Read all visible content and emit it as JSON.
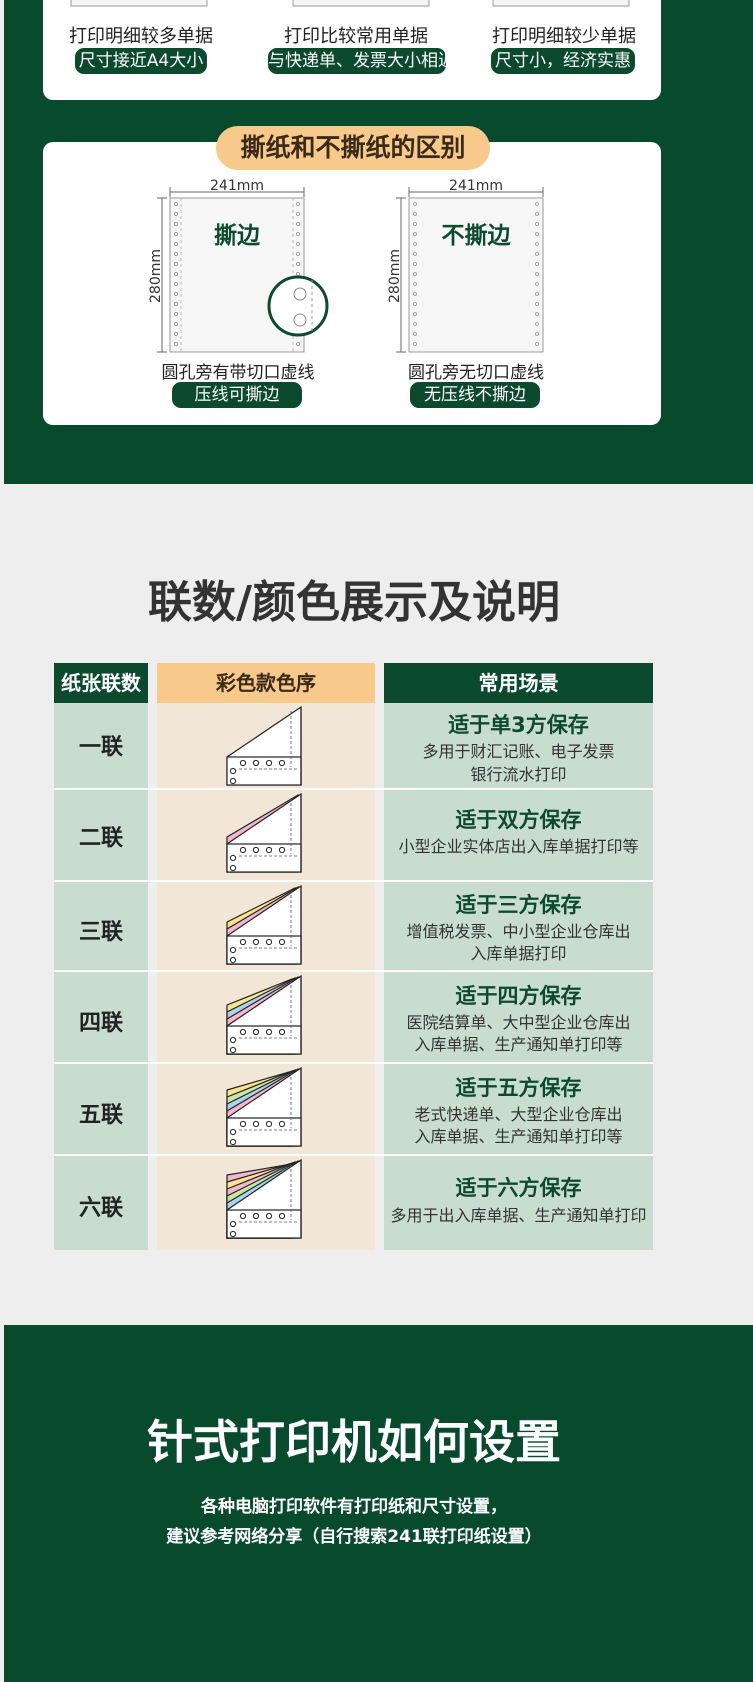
{
  "top_section": {
    "items": [
      {
        "title": "打印明细较多单据",
        "badge": "尺寸接近A4大小"
      },
      {
        "title": "打印比较常用单据",
        "badge": "与快递单、发票大小相近"
      },
      {
        "title": "打印明细较少单据",
        "badge": "尺寸小，经济实惠"
      }
    ]
  },
  "tear_section": {
    "heading": "撕纸和不撕纸的区别",
    "papers": [
      {
        "width_label": "241mm",
        "height_label": "280mm",
        "inner_label": "撕边",
        "caption": "圆孔旁有带切口虚线",
        "badge": "压线可撕边"
      },
      {
        "width_label": "241mm",
        "height_label": "280mm",
        "inner_label": "不撕边",
        "caption": "圆孔旁无切口虚线",
        "badge": "无压线不撕边"
      }
    ]
  },
  "ply_section": {
    "title": "联数/颜色展示及说明",
    "headers": {
      "left": "纸张联数",
      "middle": "彩色款色序",
      "right": "常用场景"
    },
    "rows": [
      {
        "label": "一联",
        "title": "适于单3方保存",
        "desc1": "多用于财汇记账、电子发票",
        "desc2": "银行流水打印"
      },
      {
        "label": "二联",
        "title": "适于双方保存",
        "desc1": "小型企业实体店出入库单据打印等",
        "desc2": ""
      },
      {
        "label": "三联",
        "title": "适于三方保存",
        "desc1": "增值税发票、中小型企业仓库出",
        "desc2": "入库单据打印"
      },
      {
        "label": "四联",
        "title": "适于四方保存",
        "desc1": "医院结算单、大中型企业仓库出",
        "desc2": "入库单据、生产通知单打印等"
      },
      {
        "label": "五联",
        "title": "适于五方保存",
        "desc1": "老式快递单、大型企业仓库出",
        "desc2": "入库单据、生产通知单打印等"
      },
      {
        "label": "六联",
        "title": "适于六方保存",
        "desc1": "多用于出入库单据、生产通知单打印",
        "desc2": ""
      }
    ],
    "colors": {
      "white": "#ffffff",
      "pink": "#f4b6cf",
      "yellow": "#f6e48e",
      "blue": "#a8d4ec",
      "green": "#c6e6a2"
    }
  },
  "printer_section": {
    "title": "针式打印机如何设置",
    "sub1": "各种电脑打印软件有打印纸和尺寸设置，",
    "sub2": "建议参考网络分享（自行搜索241联打印纸设置）"
  }
}
